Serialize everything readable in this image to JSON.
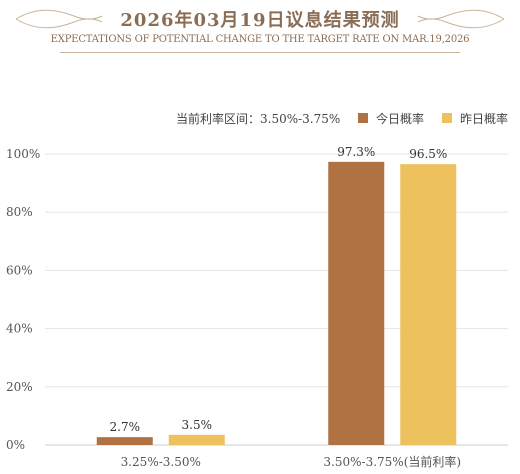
{
  "header": {
    "title": "2026年03月19日议息结果预测",
    "subtitle": "EXPECTATIONS OF POTENTIAL CHANGE TO THE TARGET RATE ON MAR.19,2026"
  },
  "legend": {
    "current_rate": "当前利率区间：3.50%-3.75%",
    "today": "今日概率",
    "yesterday": "昨日概率"
  },
  "colors": {
    "today": "#b07242",
    "yesterday": "#ecc15e",
    "title": "#8a6d55"
  },
  "chart_data": {
    "type": "bar",
    "categories": [
      "3.25%-3.50%",
      "3.50%-3.75%(当前利率)"
    ],
    "series": [
      {
        "name": "今日概率",
        "values": [
          2.7,
          97.3
        ]
      },
      {
        "name": "昨日概率",
        "values": [
          3.5,
          96.5
        ]
      }
    ],
    "data_labels": [
      [
        "2.7%",
        "97.3%"
      ],
      [
        "3.5%",
        "96.5%"
      ]
    ],
    "yticks": [
      "0%",
      "20%",
      "40%",
      "60%",
      "80%",
      "100%"
    ],
    "ylim": [
      0,
      100
    ],
    "grid": true,
    "legend_position": "top-right",
    "title": "2026年03月19日议息结果预测"
  }
}
